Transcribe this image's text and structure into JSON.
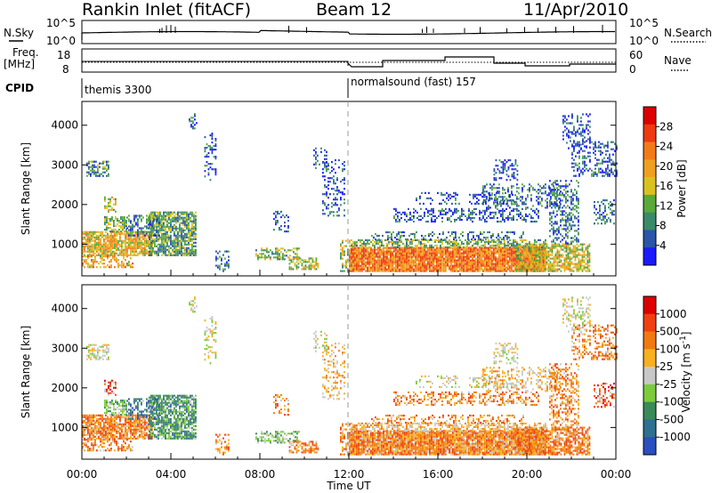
{
  "header": {
    "site": "Rankin Inlet (fitACF)",
    "beam": "Beam 12",
    "date": "11/Apr/2010"
  },
  "noise_panel": {
    "left_label": "N.Sky",
    "right_label": "N.Search",
    "left_ticks": [
      "10^5",
      "10^0"
    ],
    "right_ticks": [
      "10^5",
      "10^0"
    ]
  },
  "freq_panel": {
    "left_label_1": "Freq.",
    "left_label_2": "[MHz]",
    "right_label": "Nave",
    "left_ticks": [
      "18",
      "8"
    ],
    "right_ticks": [
      "60",
      "0"
    ]
  },
  "cpid": {
    "label": "CPID",
    "modes": [
      {
        "name": "themis 3300",
        "start_hour": 0
      },
      {
        "name": "normalsound (fast) 157",
        "start_hour": 12
      }
    ]
  },
  "colors": {
    "power_scale": [
      "#1a1aff",
      "#2a55a8",
      "#3a8a6a",
      "#5aaa38",
      "#d9c21f",
      "#f0a020",
      "#f47a18",
      "#ee3a10",
      "#dd0000"
    ],
    "velocity_scale": [
      "#2a4fbf",
      "#2f6f8f",
      "#3a8a5a",
      "#7ccc3a",
      "#c8c8c8",
      "#f8b020",
      "#f07a10",
      "#f04010",
      "#dd0000"
    ]
  },
  "chart_data": [
    {
      "type": "heatmap",
      "name": "power",
      "xlabel": "",
      "ylabel": "Slant Range [km]",
      "x_range_hours": [
        0,
        24
      ],
      "ylim": [
        200,
        4600
      ],
      "y_ticks": [
        1000,
        2000,
        3000,
        4000
      ],
      "colorbar": {
        "label": "Power [dB]",
        "ticks": [
          "28",
          "24",
          "20",
          "16",
          "12",
          "8",
          "4"
        ],
        "range": [
          0,
          32
        ]
      }
    },
    {
      "type": "heatmap",
      "name": "velocity",
      "xlabel": "Time UT",
      "ylabel": "Slant Range [km]",
      "x_range_hours": [
        0,
        24
      ],
      "ylim": [
        200,
        4600
      ],
      "y_ticks": [
        1000,
        2000,
        3000,
        4000
      ],
      "x_ticks": [
        "00:00",
        "04:00",
        "08:00",
        "12:00",
        "16:00",
        "20:00",
        "00:00"
      ],
      "colorbar": {
        "label": "Velocity [m s^-1]",
        "ticks": [
          "1000",
          "500",
          "100",
          "25",
          "-25",
          "-100",
          "-500",
          "-1000"
        ]
      }
    }
  ]
}
